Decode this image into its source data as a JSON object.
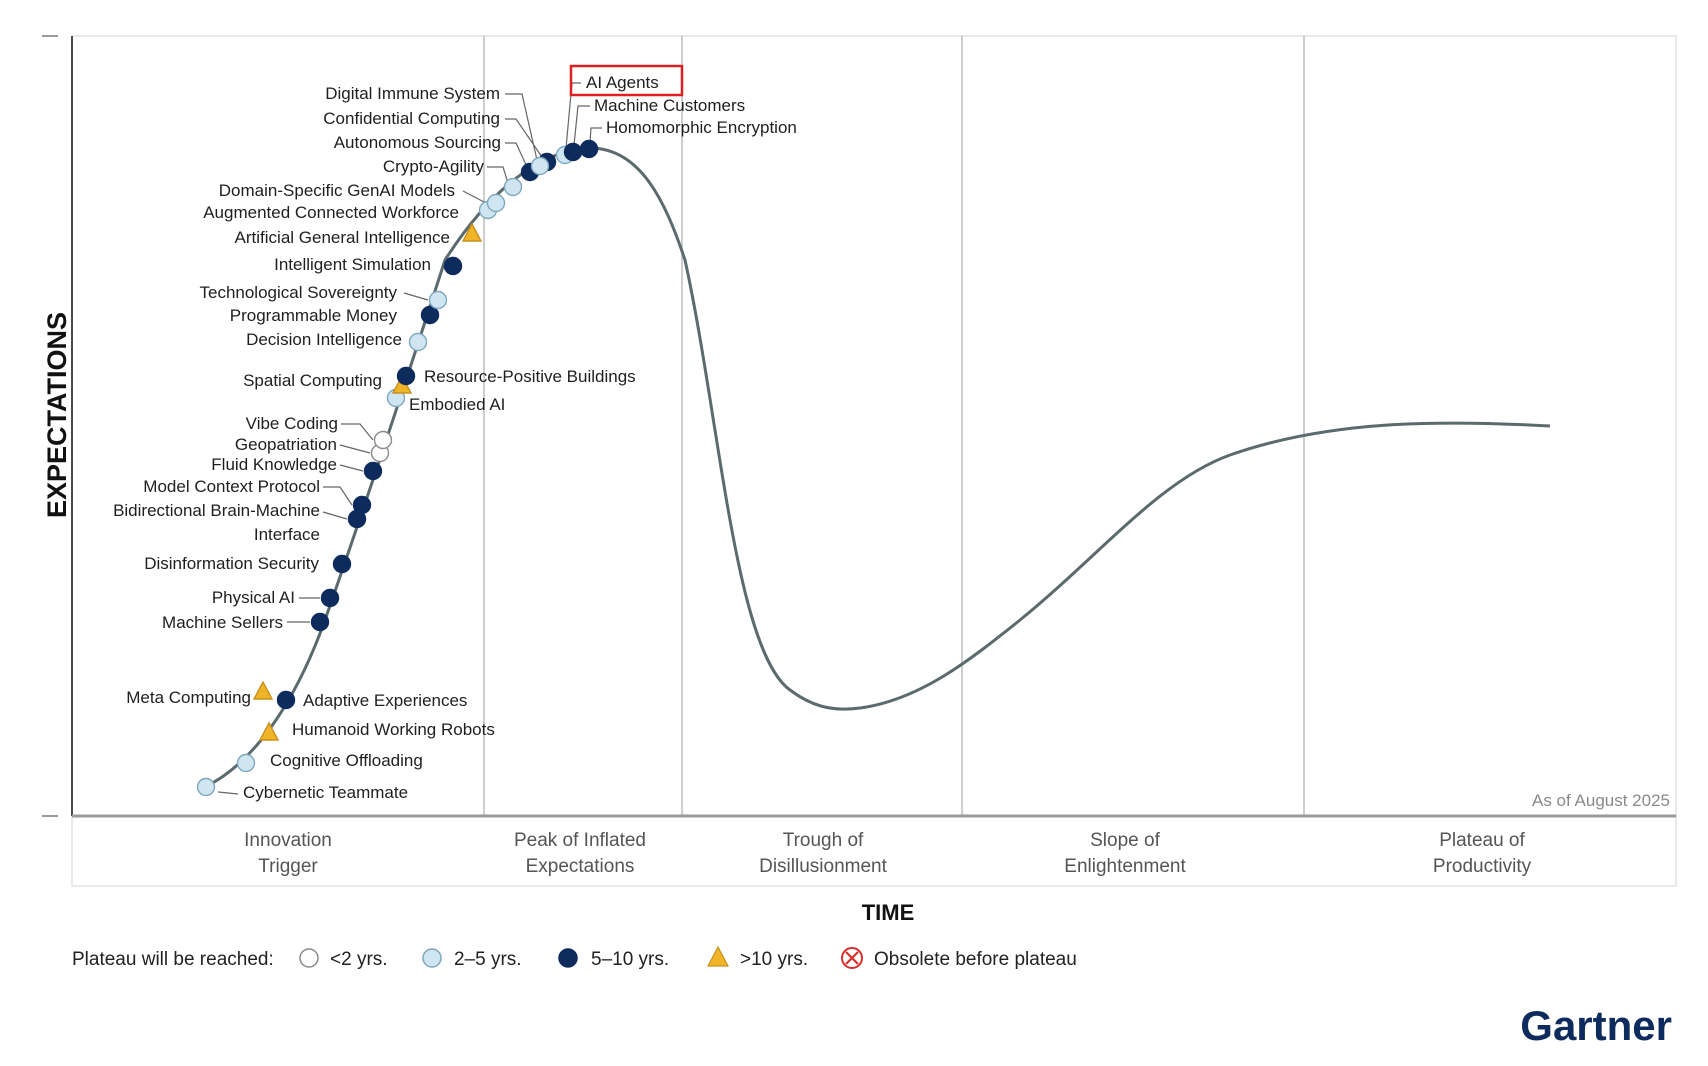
{
  "ylabel": "EXPECTATIONS",
  "xlabel": "TIME",
  "as_of": "As of August 2025",
  "brand": {
    "name": "Gartner",
    "color": "#0d2b5c"
  },
  "phases": [
    {
      "id": "innovation",
      "lines": [
        "Innovation",
        "Trigger"
      ]
    },
    {
      "id": "peak",
      "lines": [
        "Peak of Inflated",
        "Expectations"
      ]
    },
    {
      "id": "trough",
      "lines": [
        "Trough of",
        "Disillusionment"
      ]
    },
    {
      "id": "slope",
      "lines": [
        "Slope of",
        "Enlightenment"
      ]
    },
    {
      "id": "plateau",
      "lines": [
        "Plateau of",
        "Productivity"
      ]
    }
  ],
  "legend": {
    "title": "Plateau will be reached:",
    "items": [
      {
        "key": "lt2",
        "label": "<2 yrs.",
        "shape": "circle",
        "fill": "#ffffff",
        "stroke": "#8a8a8a"
      },
      {
        "key": "2to5",
        "label": "2–5 yrs.",
        "shape": "circle",
        "fill": "#cfe6f2",
        "stroke": "#7fa8bf"
      },
      {
        "key": "5to10",
        "label": "5–10 yrs.",
        "shape": "circle",
        "fill": "#0d2b5c",
        "stroke": "#0d2b5c"
      },
      {
        "key": "gt10",
        "label": ">10 yrs.",
        "shape": "triangle",
        "fill": "#f0b429",
        "stroke": "#c8901a"
      },
      {
        "key": "obsolete",
        "label": "Obsolete before plateau",
        "shape": "cross",
        "fill": "#ffffff",
        "stroke": "#d62f2f"
      }
    ]
  },
  "highlight": {
    "technology": "AI Agents",
    "color": "#e02020"
  },
  "technologies": [
    {
      "name": "Cybernetic Teammate",
      "category": "2to5"
    },
    {
      "name": "Cognitive Offloading",
      "category": "2to5"
    },
    {
      "name": "Humanoid Working Robots",
      "category": "gt10"
    },
    {
      "name": "Meta Computing",
      "category": "gt10"
    },
    {
      "name": "Adaptive Experiences",
      "category": "5to10"
    },
    {
      "name": "Machine Sellers",
      "category": "5to10"
    },
    {
      "name": "Physical AI",
      "category": "5to10"
    },
    {
      "name": "Disinformation Security",
      "category": "5to10"
    },
    {
      "name": "Bidirectional Brain-Machine Interface",
      "lines": [
        "Bidirectional Brain-Machine",
        "Interface"
      ],
      "category": "5to10"
    },
    {
      "name": "Model Context Protocol",
      "category": "5to10"
    },
    {
      "name": "Fluid Knowledge",
      "category": "5to10"
    },
    {
      "name": "Geopatriation",
      "category": "lt2"
    },
    {
      "name": "Vibe Coding",
      "category": "lt2"
    },
    {
      "name": "Embodied AI",
      "category": "2to5"
    },
    {
      "name": "Spatial Computing",
      "category": "gt10"
    },
    {
      "name": "Resource-Positive Buildings",
      "category": "5to10"
    },
    {
      "name": "Decision Intelligence",
      "category": "2to5"
    },
    {
      "name": "Programmable Money",
      "category": "5to10"
    },
    {
      "name": "Technological Sovereignty",
      "category": "2to5"
    },
    {
      "name": "Intelligent Simulation",
      "category": "5to10"
    },
    {
      "name": "Artificial General Intelligence",
      "category": "gt10"
    },
    {
      "name": "Augmented Connected Workforce",
      "category": "2to5"
    },
    {
      "name": "Domain-Specific GenAI Models",
      "category": "2to5"
    },
    {
      "name": "Crypto-Agility",
      "category": "2to5"
    },
    {
      "name": "Autonomous Sourcing",
      "category": "5to10"
    },
    {
      "name": "Confidential Computing",
      "category": "5to10"
    },
    {
      "name": "Digital Immune System",
      "category": "2to5"
    },
    {
      "name": "AI Agents",
      "category": "2to5"
    },
    {
      "name": "Machine Customers",
      "category": "5to10"
    },
    {
      "name": "Homomorphic Encryption",
      "category": "5to10"
    }
  ]
}
